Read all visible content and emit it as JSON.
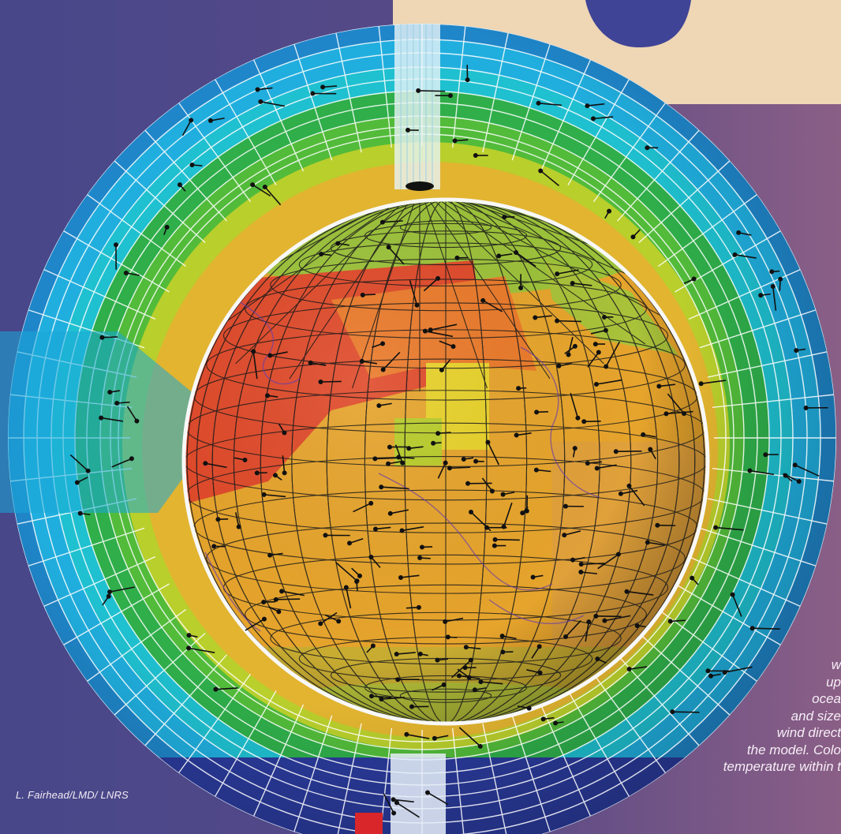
{
  "credit": "L. Fairhead/LMD/ LNRS",
  "caption_lines": [
    "w",
    "up",
    "ocea",
    "and size",
    "wind direct",
    "the model. Colo",
    "temperature within t"
  ],
  "colors": {
    "background": "#4a4a82",
    "inset_panel": "#efd6b4",
    "inset_blob": "#3f4496",
    "shell_blue": "#1a9ed6",
    "shell_cyan": "#1bbdd4",
    "shell_green": "#2fae4a",
    "shell_yellow": "#d8d42a",
    "globe_red": "#e04428",
    "globe_orange": "#e68a2a",
    "globe_yellow": "#e8c82a",
    "globe_green": "#7cb83a"
  }
}
